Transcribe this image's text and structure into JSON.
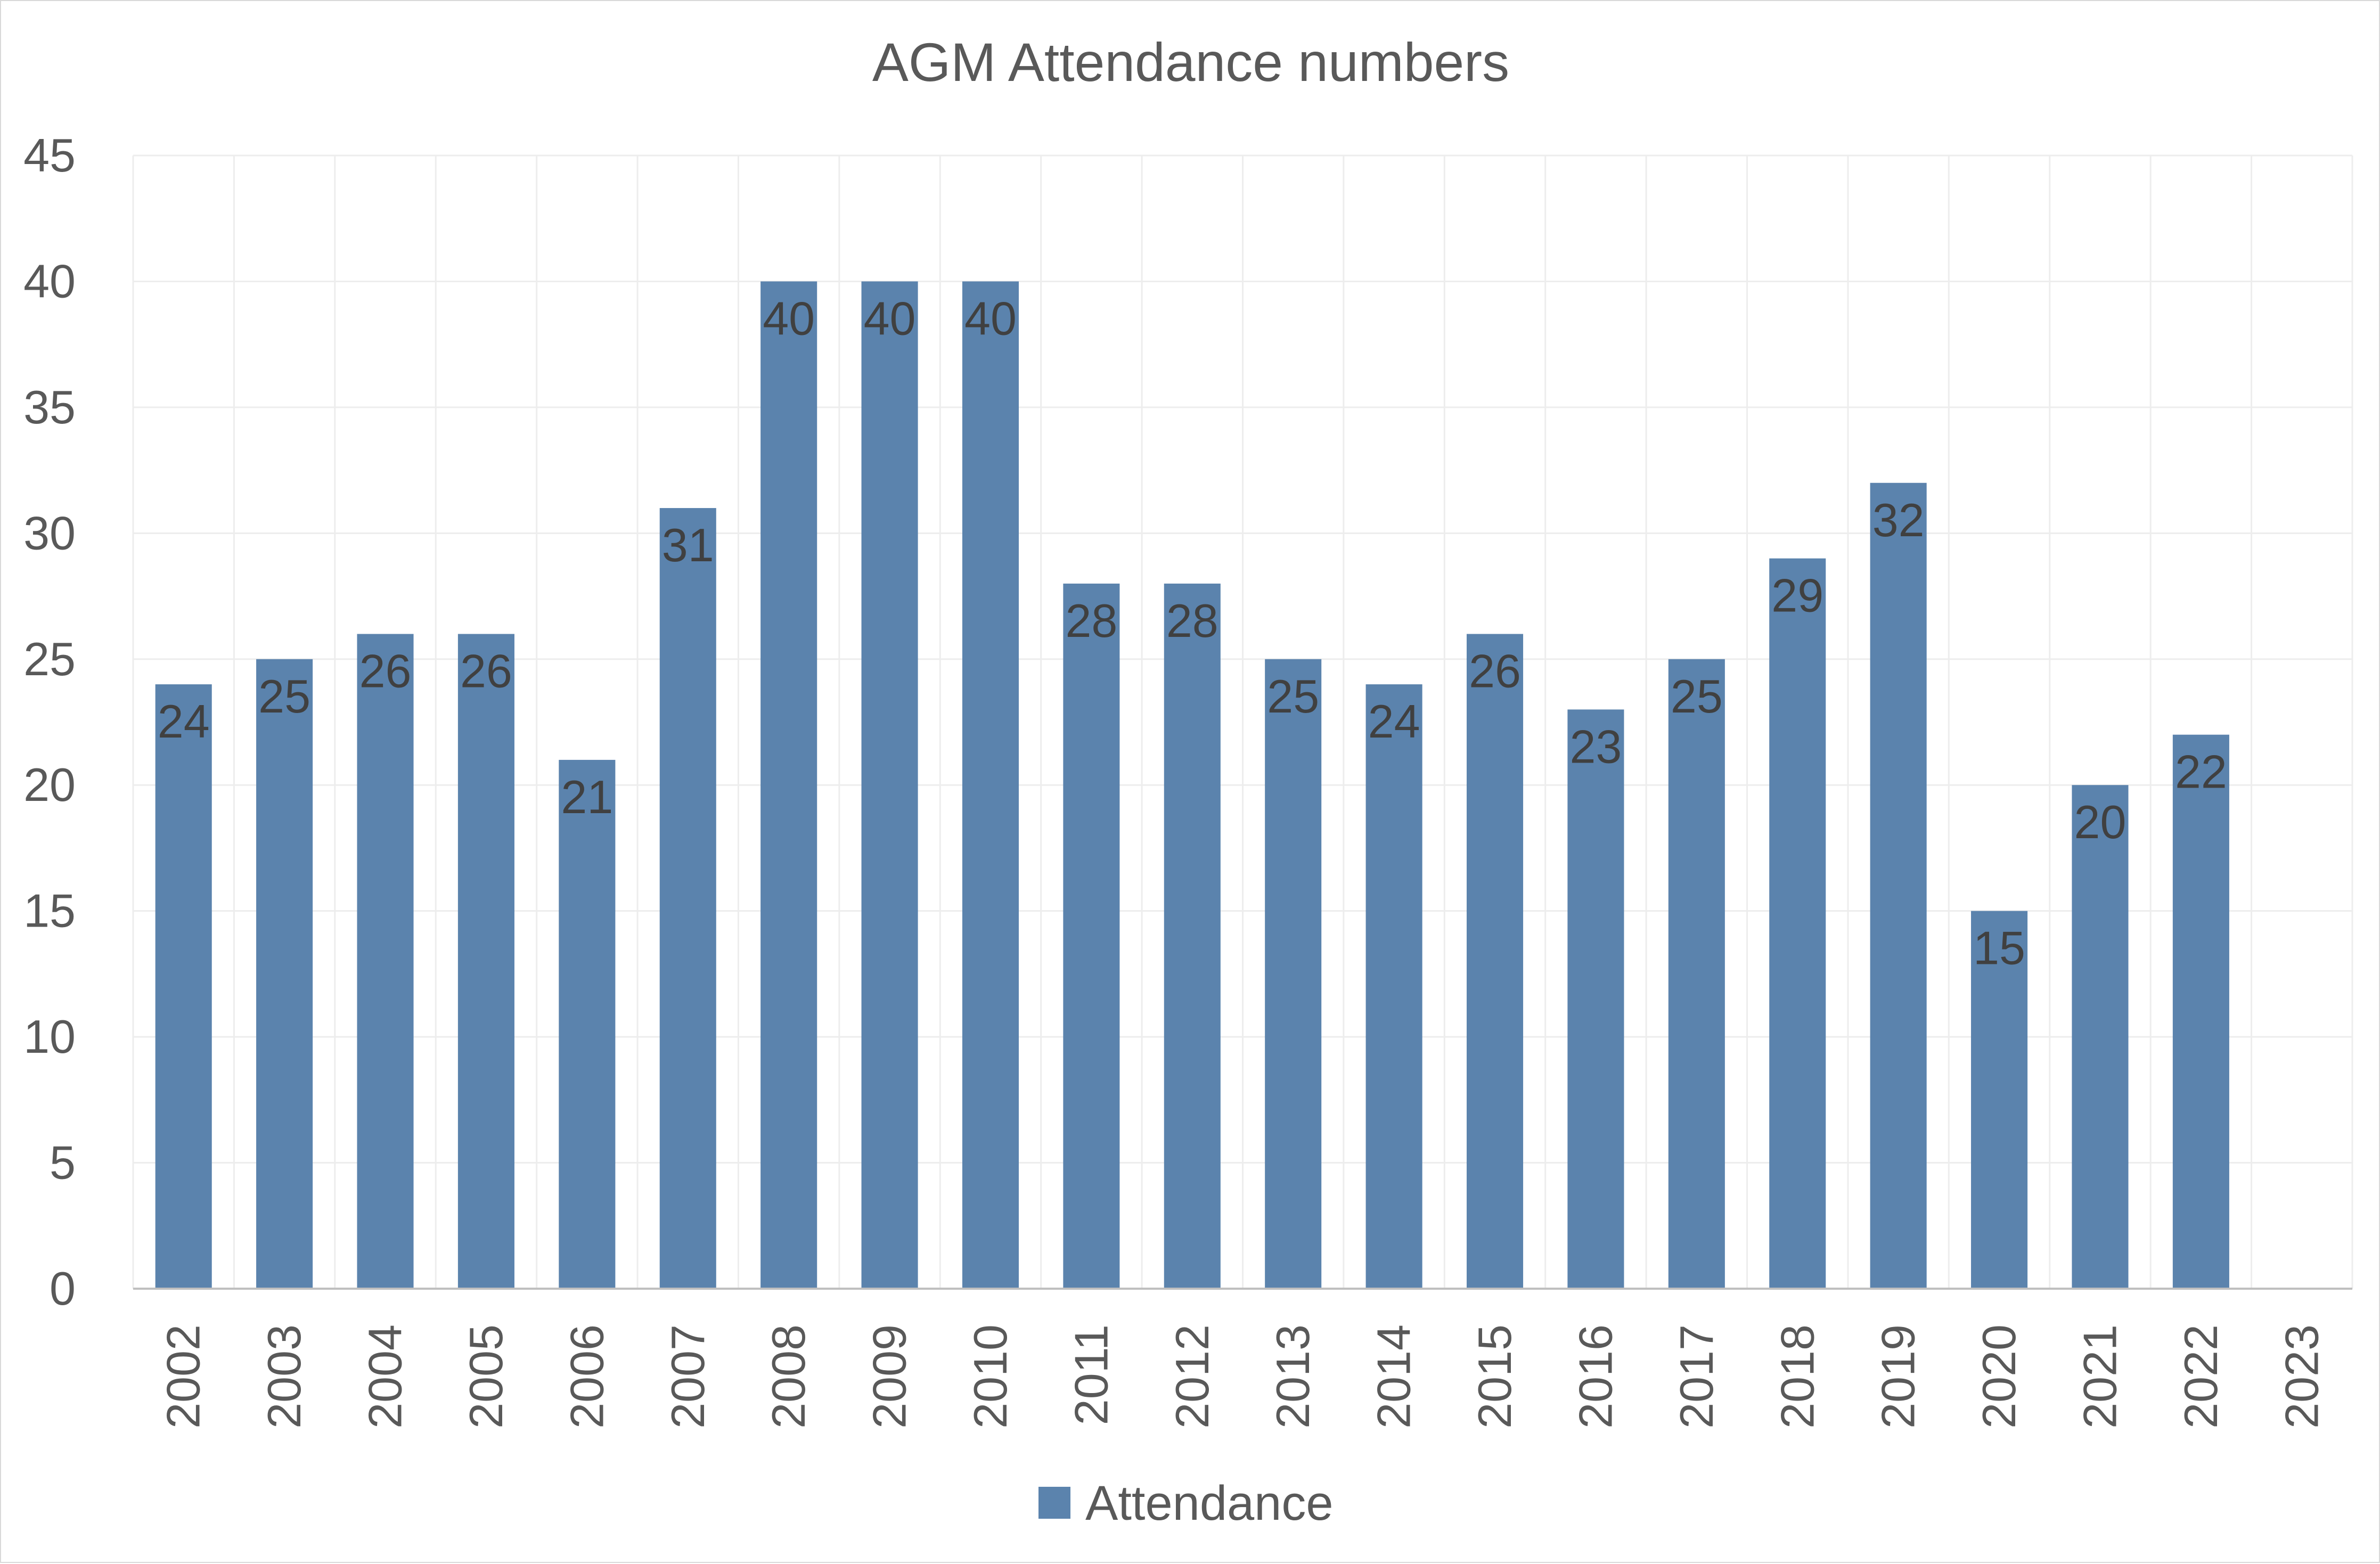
{
  "chart_data": {
    "type": "bar",
    "title": "AGM Attendance numbers",
    "xlabel": "",
    "ylabel": "",
    "categories": [
      "2002",
      "2003",
      "2004",
      "2005",
      "2006",
      "2007",
      "2008",
      "2009",
      "2010",
      "2011",
      "2012",
      "2013",
      "2014",
      "2015",
      "2016",
      "2017",
      "2018",
      "2019",
      "2020",
      "2021",
      "2022",
      "2023"
    ],
    "series": [
      {
        "name": "Attendance",
        "color": "#5b83ad",
        "values": [
          24,
          25,
          26,
          26,
          21,
          31,
          40,
          40,
          40,
          28,
          28,
          25,
          24,
          26,
          23,
          25,
          29,
          32,
          15,
          20,
          22,
          null
        ]
      }
    ],
    "ylim": [
      0,
      45
    ],
    "yticks": [
      "0",
      "5",
      "10",
      "15",
      "20",
      "25",
      "30",
      "35",
      "40",
      "45"
    ],
    "grid": true,
    "legend_position": "bottom",
    "data_labels": "inside-end"
  }
}
